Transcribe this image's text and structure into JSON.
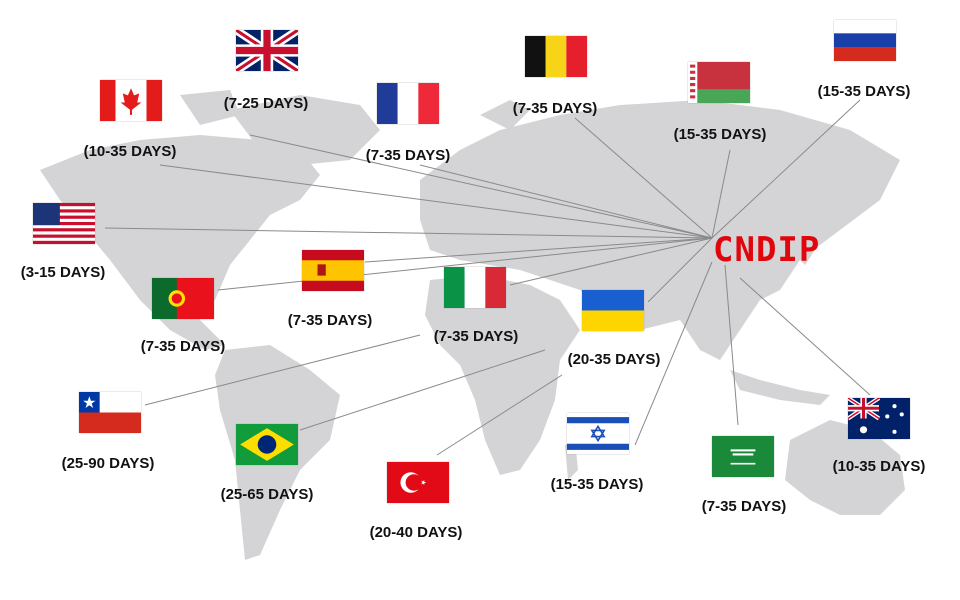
{
  "hub": {
    "label": "CNDIP",
    "color": "#e0060c"
  },
  "destinations": [
    {
      "country": "United Kingdom",
      "icon": "uk-flag-icon",
      "days": "(7-25 DAYS)"
    },
    {
      "country": "Canada",
      "icon": "canada-flag-icon",
      "days": "(10-35 DAYS)"
    },
    {
      "country": "France",
      "icon": "france-flag-icon",
      "days": "(7-35 DAYS)"
    },
    {
      "country": "Belgium",
      "icon": "belgium-flag-icon",
      "days": "(7-35 DAYS)"
    },
    {
      "country": "Belarus",
      "icon": "belarus-flag-icon",
      "days": "(15-35 DAYS)"
    },
    {
      "country": "Russia",
      "icon": "russia-flag-icon",
      "days": "(15-35 DAYS)"
    },
    {
      "country": "United States",
      "icon": "usa-flag-icon",
      "days": "(3-15 DAYS)"
    },
    {
      "country": "Spain",
      "icon": "spain-flag-icon",
      "days": "(7-35 DAYS)"
    },
    {
      "country": "Portugal",
      "icon": "portugal-flag-icon",
      "days": "(7-35 DAYS)"
    },
    {
      "country": "Italy",
      "icon": "italy-flag-icon",
      "days": "(7-35 DAYS)"
    },
    {
      "country": "Ukraine",
      "icon": "ukraine-flag-icon",
      "days": "(20-35 DAYS)"
    },
    {
      "country": "Chile",
      "icon": "chile-flag-icon",
      "days": "(25-90 DAYS)"
    },
    {
      "country": "Brazil",
      "icon": "brazil-flag-icon",
      "days": "(25-65 DAYS)"
    },
    {
      "country": "Turkey",
      "icon": "turkey-flag-icon",
      "days": "(20-40 DAYS)"
    },
    {
      "country": "Israel",
      "icon": "israel-flag-icon",
      "days": "(15-35 DAYS)"
    },
    {
      "country": "Saudi Arabia",
      "icon": "saudi-flag-icon",
      "days": "(7-35 DAYS)"
    },
    {
      "country": "Australia",
      "icon": "australia-flag-icon",
      "days": "(10-35 DAYS)"
    }
  ]
}
